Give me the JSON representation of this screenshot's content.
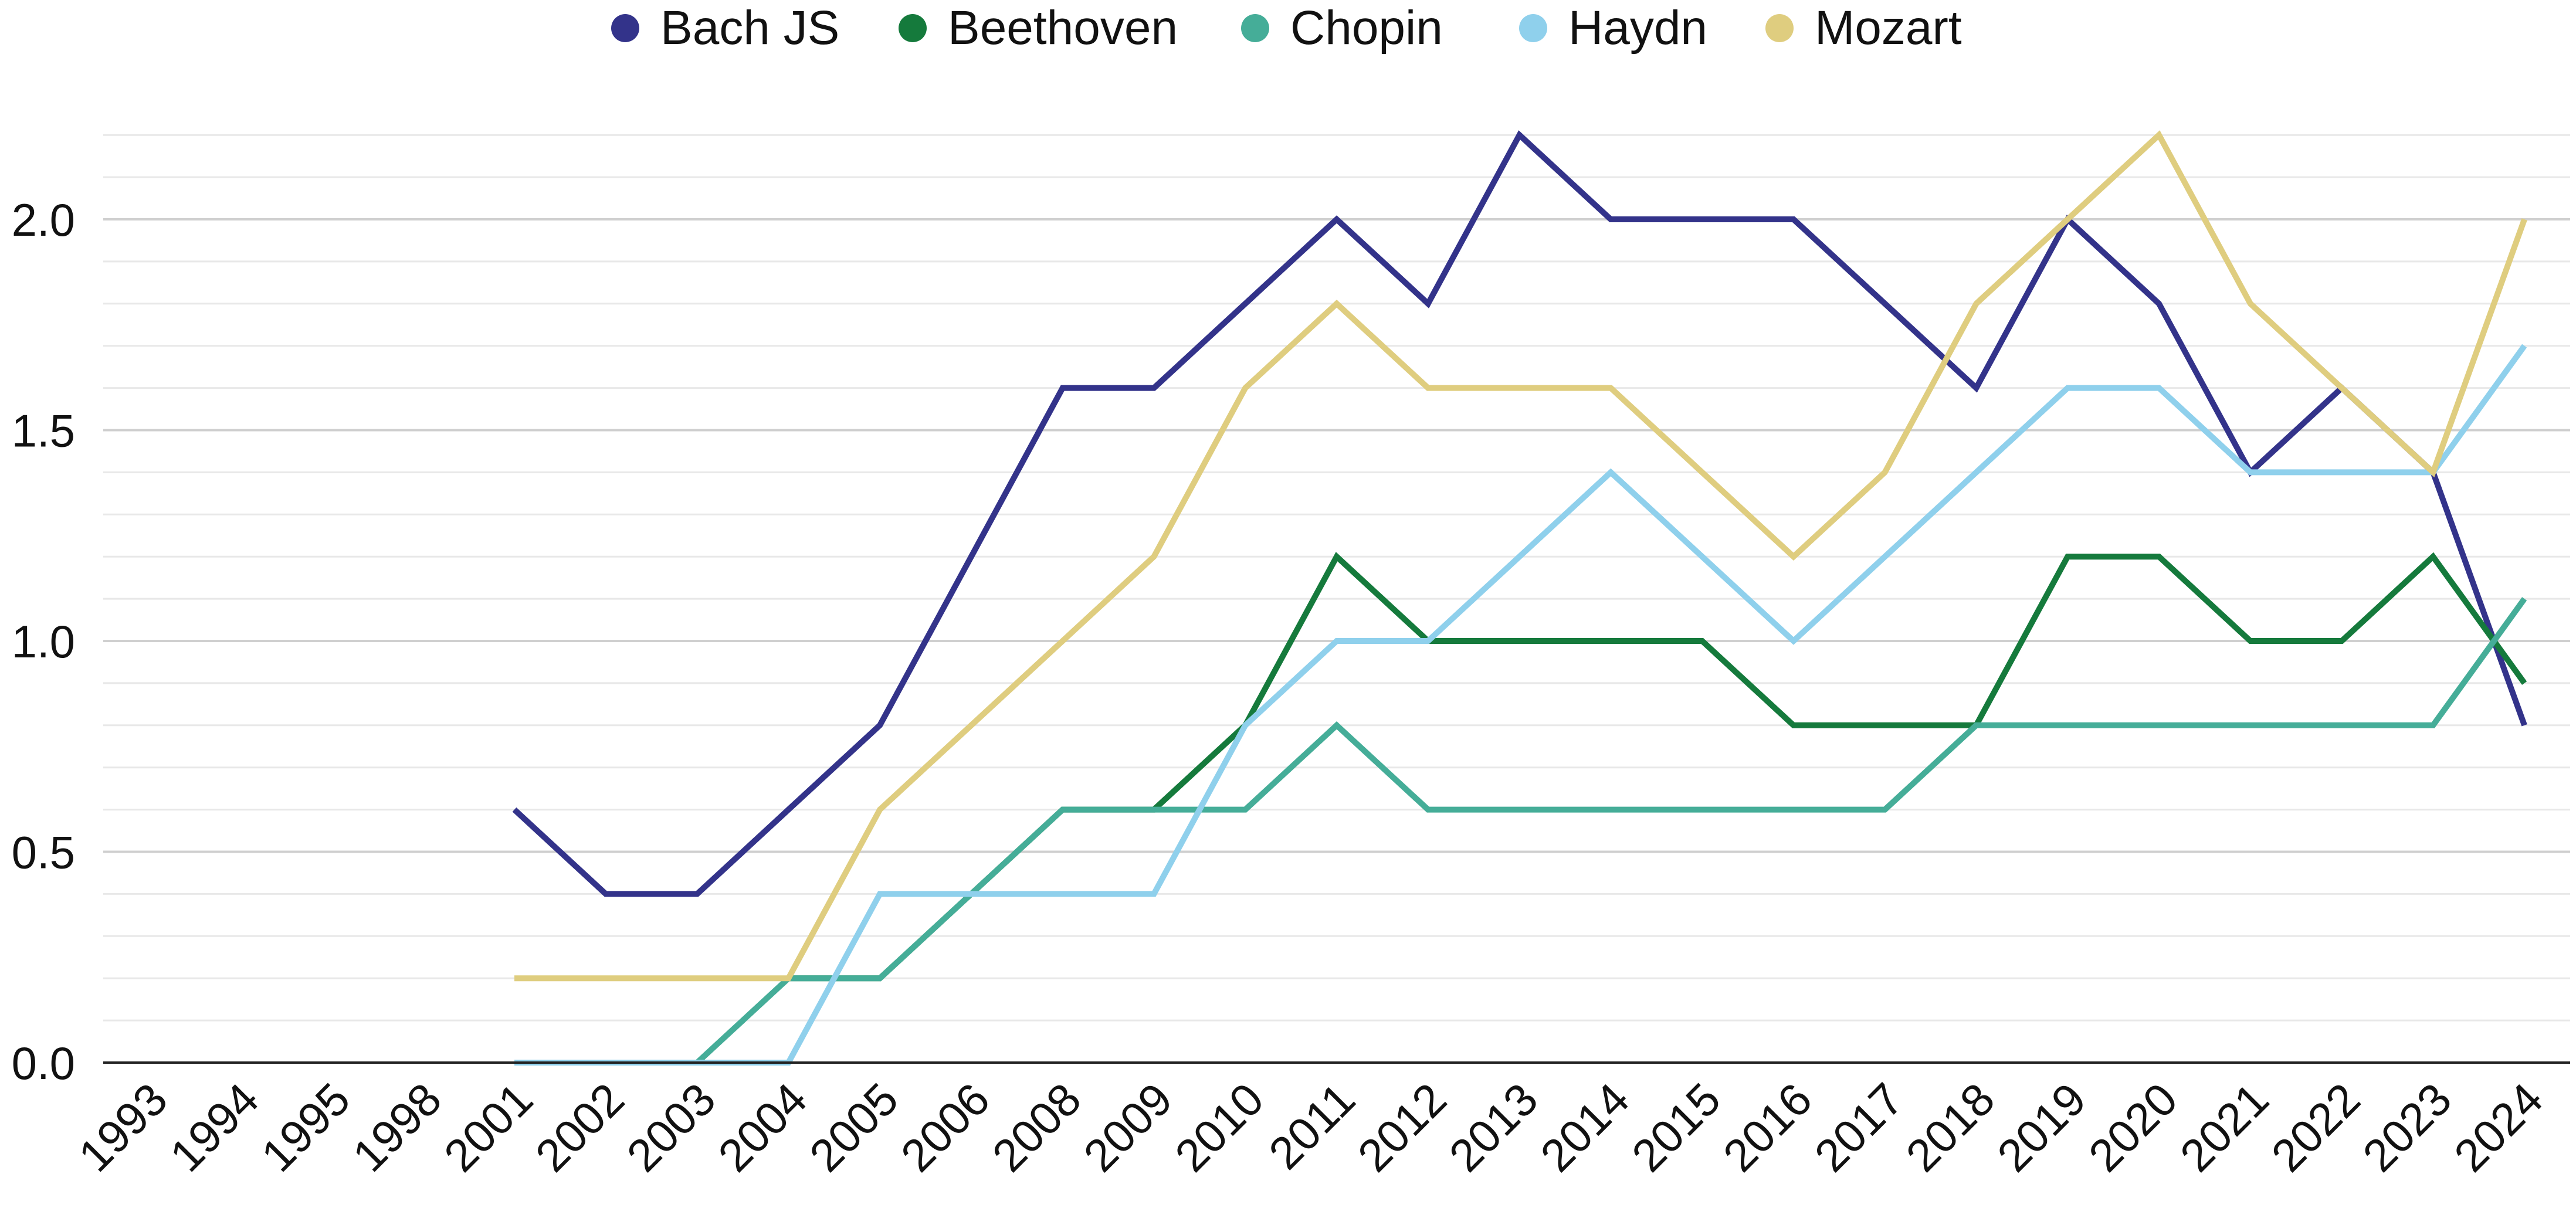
{
  "chart_data": {
    "type": "line",
    "title": "",
    "xlabel": "",
    "ylabel": "",
    "ylim": [
      0,
      2.2
    ],
    "y_ticks": [
      0.0,
      0.5,
      1.0,
      1.5,
      2.0
    ],
    "y_tick_labels": [
      "0.0",
      "0.5",
      "1.0",
      "1.5",
      "2.0"
    ],
    "minor_grid_step": 0.1,
    "grid": true,
    "legend_position": "top-center",
    "categories": [
      "1993",
      "1994",
      "1995",
      "1998",
      "2001",
      "2002",
      "2003",
      "2004",
      "2005",
      "2006",
      "2008",
      "2009",
      "2010",
      "2011",
      "2012",
      "2013",
      "2014",
      "2015",
      "2016",
      "2017",
      "2018",
      "2019",
      "2020",
      "2021",
      "2022",
      "2023",
      "2024"
    ],
    "series": [
      {
        "name": "Bach JS",
        "color": "#33338a",
        "values": [
          null,
          null,
          null,
          null,
          0.6,
          0.4,
          0.4,
          0.6,
          0.8,
          1.2,
          1.6,
          1.6,
          1.8,
          2.0,
          1.8,
          2.2,
          2.0,
          2.0,
          2.0,
          1.8,
          1.6,
          2.0,
          1.8,
          1.4,
          1.6,
          1.4,
          0.8
        ]
      },
      {
        "name": "Beethoven",
        "color": "#157a3c",
        "values": [
          null,
          null,
          null,
          null,
          null,
          null,
          null,
          0.2,
          0.2,
          0.4,
          0.6,
          0.6,
          0.8,
          1.2,
          1.0,
          1.0,
          1.0,
          1.0,
          0.8,
          0.8,
          0.8,
          1.2,
          1.2,
          1.0,
          1.0,
          1.2,
          0.9
        ]
      },
      {
        "name": "Chopin",
        "color": "#45ad98",
        "values": [
          null,
          null,
          null,
          null,
          0.0,
          0.0,
          0.0,
          0.2,
          0.2,
          0.4,
          0.6,
          0.6,
          0.6,
          0.8,
          0.6,
          0.6,
          0.6,
          0.6,
          0.6,
          0.6,
          0.8,
          0.8,
          0.8,
          0.8,
          0.8,
          0.8,
          1.1
        ]
      },
      {
        "name": "Haydn",
        "color": "#8fd0ec",
        "values": [
          null,
          null,
          null,
          null,
          0.0,
          0.0,
          0.0,
          0.0,
          0.4,
          0.4,
          0.4,
          0.4,
          0.8,
          1.0,
          1.0,
          1.2,
          1.4,
          1.2,
          1.0,
          1.2,
          1.4,
          1.6,
          1.6,
          1.4,
          1.4,
          1.4,
          1.7
        ]
      },
      {
        "name": "Mozart",
        "color": "#dfcd7f",
        "values": [
          null,
          null,
          null,
          null,
          0.2,
          0.2,
          0.2,
          0.2,
          0.6,
          0.8,
          1.0,
          1.2,
          1.6,
          1.8,
          1.6,
          1.6,
          1.6,
          1.4,
          1.2,
          1.4,
          1.8,
          2.0,
          2.2,
          1.8,
          1.6,
          1.4,
          2.0
        ]
      }
    ]
  }
}
